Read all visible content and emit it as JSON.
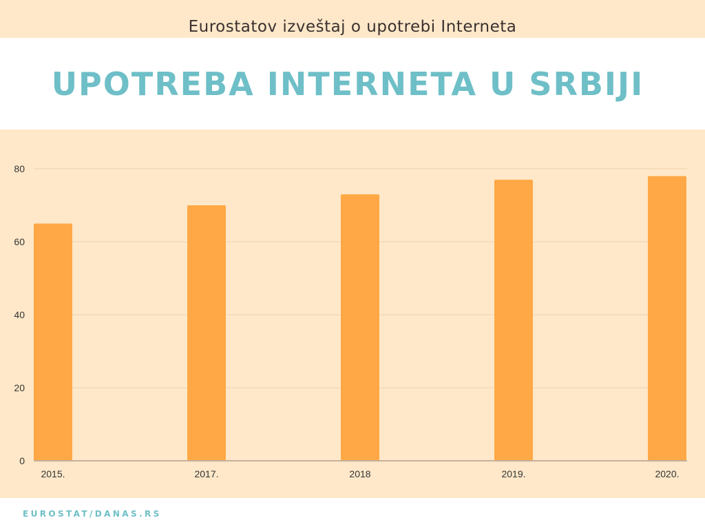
{
  "header": {
    "subtitle": "Eurostatov izveštaj o upotrebi Interneta",
    "title": "UPOTREBA INTERNETA U SRBIJI"
  },
  "footer": {
    "source": "EUROSTAT/DANAS.RS"
  },
  "colors": {
    "background": "#FFE8C9",
    "bar": "#FFA845",
    "title": "#6EBFC7"
  },
  "chart_data": {
    "type": "bar",
    "title": "UPOTREBA INTERNETA U SRBIJI",
    "categories": [
      "2015.",
      "2017.",
      "2018",
      "2019.",
      "2020."
    ],
    "values": [
      65,
      70,
      73,
      77,
      78
    ],
    "ylim": [
      0,
      80
    ],
    "yticks": [
      0,
      20,
      40,
      60,
      80
    ],
    "grid": true,
    "xlabel": "",
    "ylabel": ""
  }
}
